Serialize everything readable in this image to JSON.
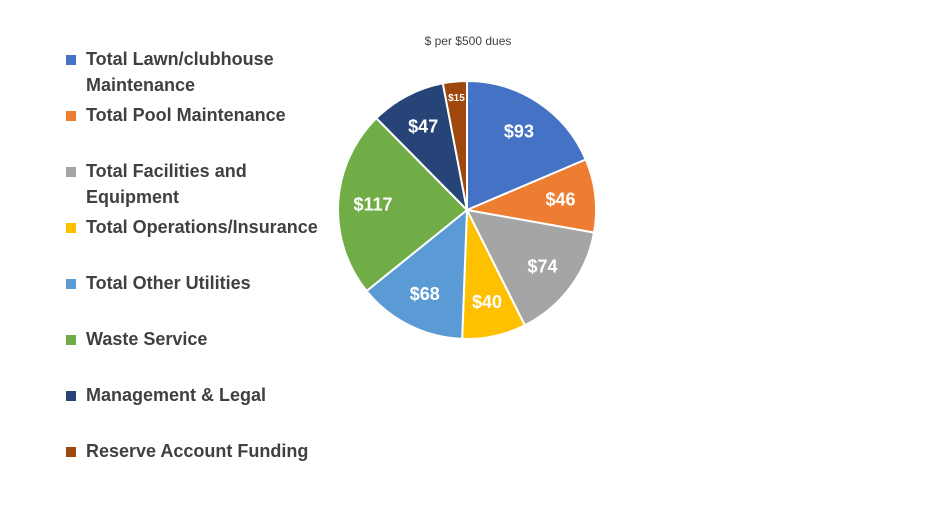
{
  "chart_data": {
    "type": "pie",
    "title": "$ per $500 dues",
    "legend_position": "left",
    "slices": [
      {
        "name": "Total Lawn/clubhouse Maintenance",
        "value": 93,
        "label": "$93",
        "color": "#4472C4"
      },
      {
        "name": "Total Pool Maintenance",
        "value": 46,
        "label": "$46",
        "color": "#ED7D31"
      },
      {
        "name": "Total Facilities and Equipment",
        "value": 74,
        "label": "$74",
        "color": "#A5A5A5"
      },
      {
        "name": "Total Operations/Insurance",
        "value": 40,
        "label": "$40",
        "color": "#FFC000"
      },
      {
        "name": "Total Other Utilities",
        "value": 68,
        "label": "$68",
        "color": "#5B9BD5"
      },
      {
        "name": "Waste Service",
        "value": 117,
        "label": "$117",
        "color": "#70AD47"
      },
      {
        "name": "Management & Legal",
        "value": 47,
        "label": "$47",
        "color": "#264478"
      },
      {
        "name": "Reserve Account Funding",
        "value": 15,
        "label": "$15",
        "color": "#9E480E"
      }
    ]
  },
  "legend_lines": [
    [
      "Total Lawn/clubhouse",
      "Maintenance"
    ],
    [
      "Total Pool Maintenance"
    ],
    [
      "Total Facilities and",
      "Equipment"
    ],
    [
      "Total Operations/Insurance"
    ],
    [
      "Total Other Utilities"
    ],
    [
      "Waste Service"
    ],
    [
      "Management & Legal"
    ],
    [
      "Reserve Account Funding"
    ]
  ]
}
